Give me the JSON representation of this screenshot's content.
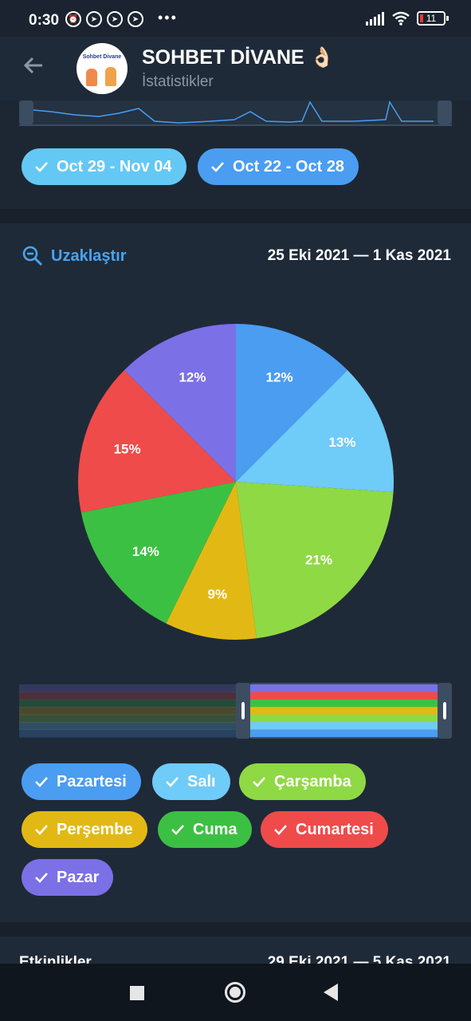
{
  "status": {
    "time": "0:30",
    "battery": "11"
  },
  "header": {
    "title": "SOHBET DİVANE 👌🏻",
    "subtitle": "İstatistikler",
    "avatar_text": "Sohbet Divane"
  },
  "week_chips": [
    {
      "label": "Oct 29 - Nov 04",
      "color": "#64c8f4"
    },
    {
      "label": "Oct 22 - Oct 28",
      "color": "#4a9df0"
    }
  ],
  "card": {
    "zoom_label": "Uzaklaştır",
    "date_range": "25 Eki 2021 — 1 Kas 2021"
  },
  "chart_data": {
    "type": "pie",
    "slices": [
      {
        "label": "Pazartesi",
        "percent": 12,
        "color": "#4a9df0"
      },
      {
        "label": "Salı",
        "percent": 13,
        "color": "#6fcbf7"
      },
      {
        "label": "Çarşamba",
        "percent": 21,
        "color": "#8fd944"
      },
      {
        "label": "Perşembe",
        "percent": 9,
        "color": "#e2b914"
      },
      {
        "label": "Cuma",
        "percent": 14,
        "color": "#3cc043"
      },
      {
        "label": "Cumartesi",
        "percent": 15,
        "color": "#ef4b4a"
      },
      {
        "label": "Pazar",
        "percent": 12,
        "color": "#7b70e6"
      }
    ]
  },
  "day_chips": [
    {
      "label": "Pazartesi",
      "color": "#4a9df0"
    },
    {
      "label": "Salı",
      "color": "#6fcbf7"
    },
    {
      "label": "Çarşamba",
      "color": "#8fd944"
    },
    {
      "label": "Perşembe",
      "color": "#e2b914"
    },
    {
      "label": "Cuma",
      "color": "#3cc043"
    },
    {
      "label": "Cumartesi",
      "color": "#ef4b4a"
    },
    {
      "label": "Pazar",
      "color": "#7b70e6"
    }
  ],
  "next_section": {
    "title": "Etkinlikler",
    "date_range": "29 Eki 2021 — 5 Kas 2021"
  }
}
